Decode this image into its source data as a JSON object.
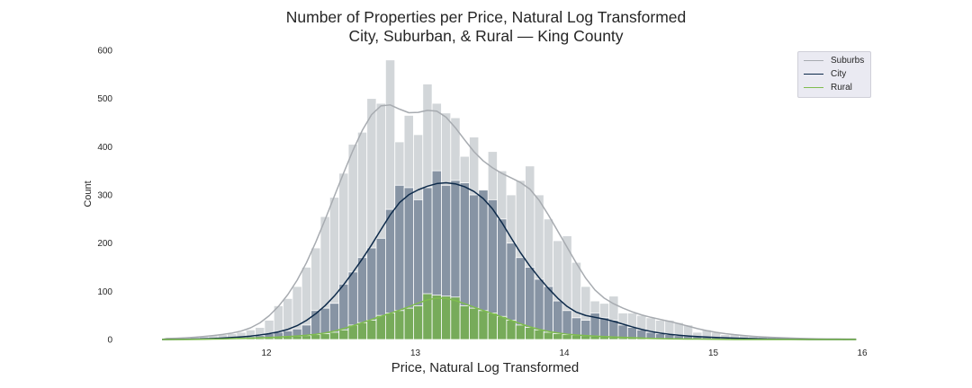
{
  "chart_data": {
    "type": "histogram",
    "title": "Number of Properties per Price, Natural Log Transformed",
    "subtitle": "City, Suburban, & Rural — King County",
    "xlabel": "Price, Natural Log Transformed",
    "ylabel": "Count",
    "xlim": [
      11.3,
      16.0
    ],
    "ylim": [
      0,
      600
    ],
    "x_ticks": [
      12,
      13,
      14,
      15,
      16
    ],
    "y_ticks": [
      0,
      100,
      200,
      300,
      400,
      500,
      600
    ],
    "bin_start": 11.3,
    "bin_width": 0.0625,
    "kde": true,
    "grid": false,
    "legend_position": "top-right",
    "series": [
      {
        "name": "Suburbs",
        "color": "#a7abb0",
        "bar_color": "#b4bac0",
        "counts": [
          1,
          2,
          3,
          4,
          6,
          8,
          10,
          12,
          15,
          20,
          25,
          40,
          70,
          85,
          110,
          150,
          190,
          255,
          295,
          345,
          405,
          430,
          500,
          490,
          580,
          410,
          465,
          425,
          530,
          490,
          470,
          460,
          380,
          420,
          310,
          390,
          350,
          300,
          330,
          360,
          300,
          250,
          205,
          215,
          160,
          110,
          80,
          75,
          90,
          55,
          55,
          50,
          45,
          40,
          40,
          35,
          30,
          15,
          20,
          15,
          10,
          10,
          8,
          6,
          5,
          4,
          4,
          3,
          2,
          2,
          1,
          1,
          1,
          1,
          1
        ]
      },
      {
        "name": "City",
        "color": "#0d2a4a",
        "bar_color": "#6d7e91",
        "counts": [
          0,
          0,
          0,
          1,
          1,
          2,
          3,
          4,
          5,
          6,
          8,
          12,
          15,
          18,
          22,
          30,
          60,
          65,
          75,
          115,
          140,
          170,
          190,
          210,
          270,
          320,
          315,
          290,
          315,
          350,
          320,
          330,
          325,
          300,
          310,
          290,
          250,
          200,
          170,
          150,
          125,
          110,
          80,
          60,
          45,
          40,
          55,
          45,
          40,
          30,
          25,
          20,
          15,
          12,
          10,
          8,
          7,
          6,
          5,
          4,
          3,
          3,
          2,
          2,
          1,
          1,
          1,
          0,
          0,
          0,
          0,
          0,
          0,
          0,
          0
        ]
      },
      {
        "name": "Rural",
        "color": "#7fbd4f",
        "bar_color": "#75ad52",
        "counts": [
          0,
          0,
          0,
          0,
          0,
          1,
          1,
          2,
          2,
          3,
          3,
          4,
          5,
          6,
          7,
          8,
          10,
          12,
          15,
          20,
          30,
          35,
          40,
          50,
          55,
          60,
          65,
          70,
          95,
          92,
          90,
          88,
          70,
          65,
          60,
          55,
          48,
          40,
          30,
          25,
          20,
          15,
          12,
          10,
          9,
          8,
          7,
          6,
          5,
          4,
          4,
          3,
          2,
          2,
          1,
          1,
          1,
          1,
          1,
          0,
          0,
          0,
          0,
          0,
          0,
          0,
          0,
          0,
          0,
          0,
          0,
          0,
          0,
          0,
          0
        ]
      }
    ]
  }
}
